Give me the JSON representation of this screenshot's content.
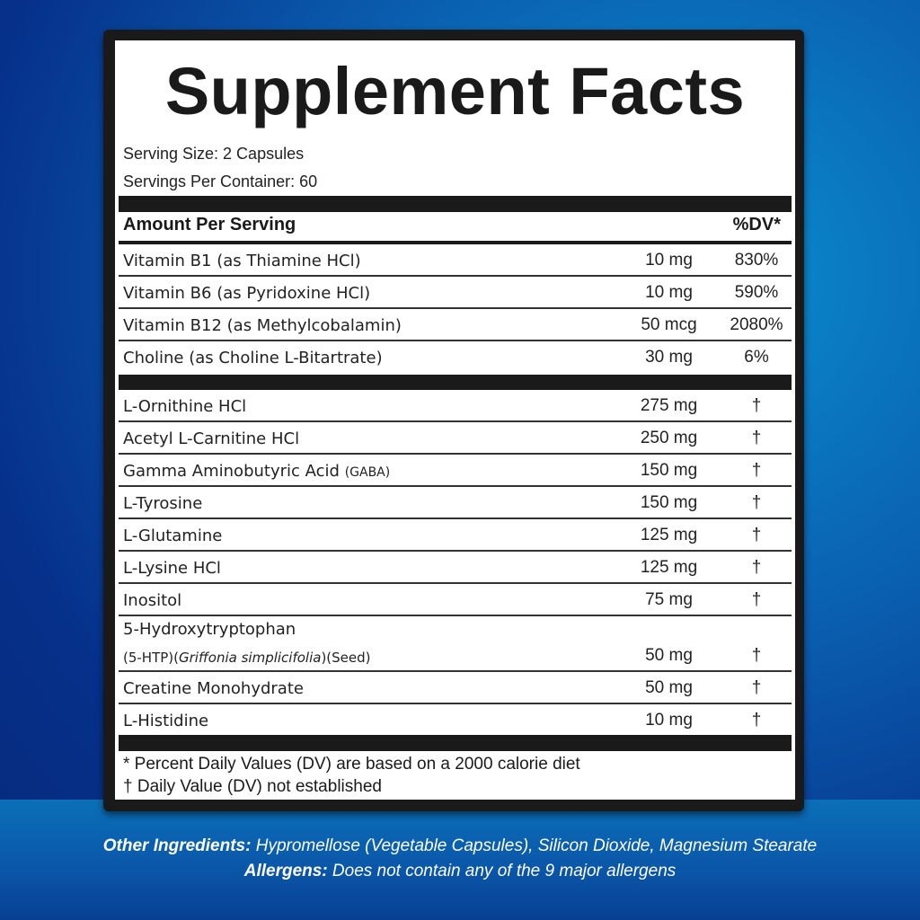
{
  "title": "Supplement Facts",
  "serving_size": "Serving Size: 2 Capsules",
  "servings_per_container": "Servings Per Container: 60",
  "header": {
    "amount": "Amount Per Serving",
    "dv": "%DV*"
  },
  "vitamins": [
    {
      "name": "Vitamin B1 (as Thiamine HCl)",
      "amount": "10 mg",
      "dv": "830%"
    },
    {
      "name": "Vitamin B6 (as Pyridoxine HCl)",
      "amount": "10 mg",
      "dv": "590%"
    },
    {
      "name": "Vitamin B12 (as Methylcobalamin)",
      "amount": "50 mcg",
      "dv": "2080%"
    },
    {
      "name": "Choline (as Choline L-Bitartrate)",
      "amount": "30 mg",
      "dv": "6%"
    }
  ],
  "others": [
    {
      "name": "L-Ornithine HCl",
      "amount": "275 mg",
      "dv": "†"
    },
    {
      "name": "Acetyl L-Carnitine HCl",
      "amount": "250 mg",
      "dv": "†"
    },
    {
      "name": "Gamma Aminobutyric Acid",
      "name_small": "(GABA)",
      "amount": "150 mg",
      "dv": "†"
    },
    {
      "name": "L-Tyrosine",
      "amount": "150 mg",
      "dv": "†"
    },
    {
      "name": "L-Glutamine",
      "amount": "125 mg",
      "dv": "†"
    },
    {
      "name": "L-Lysine HCl",
      "amount": "125 mg",
      "dv": "†"
    },
    {
      "name": "Inositol",
      "amount": "75 mg",
      "dv": "†"
    }
  ],
  "htp": {
    "line1": "5-Hydroxytryptophan",
    "line2a": "(5-HTP)(",
    "line2b": "Griffonia simplicifolia",
    "line2c": ")(Seed)",
    "amount": "50 mg",
    "dv": "†"
  },
  "others2": [
    {
      "name": "Creatine Monohydrate",
      "amount": "50 mg",
      "dv": "†"
    },
    {
      "name": "L-Histidine",
      "amount": "10 mg",
      "dv": "†"
    }
  ],
  "footnotes": [
    "* Percent Daily Values (DV) are based on a 2000 calorie diet",
    "† Daily Value (DV) not established"
  ],
  "other_ingredients": {
    "label": "Other Ingredients:",
    "text": " Hypromellose (Vegetable Capsules), Silicon Dioxide, Magnesium Stearate"
  },
  "allergens": {
    "label": "Allergens:",
    "text": " Does not contain any of the 9 major allergens"
  }
}
